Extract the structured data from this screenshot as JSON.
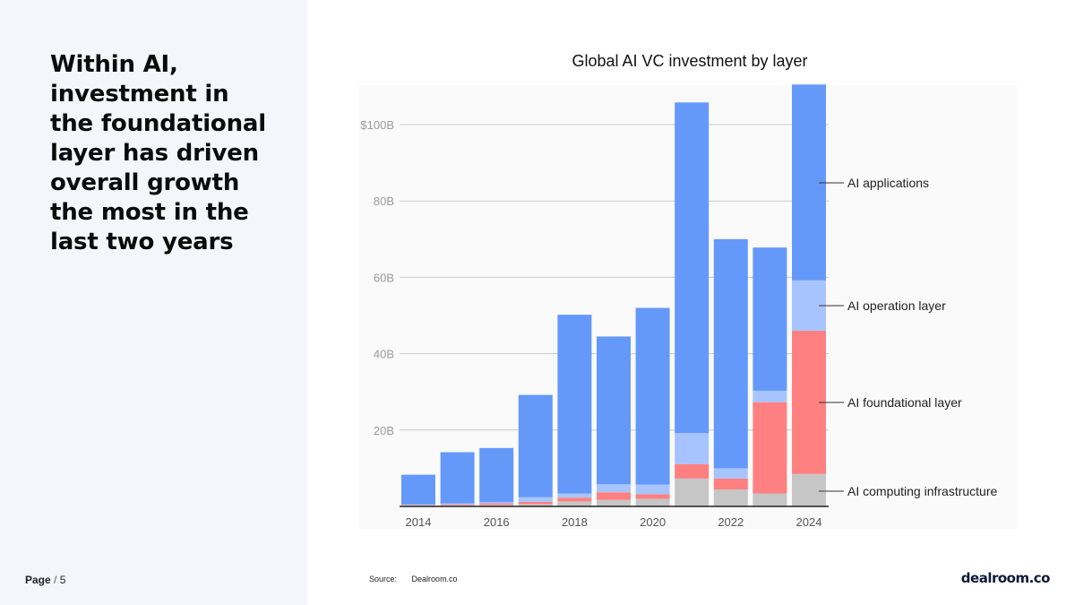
{
  "slide": {
    "headline": "Within AI,\ninvestment in\nthe foundational\nlayer has driven\noverall growth\nthe most in the\nlast two years",
    "page_number": "Page",
    "page_sep": "/",
    "page_total": "5",
    "source_label": "Source:",
    "source_value": "Dealroom.co",
    "logo_text": "dealroom.co"
  },
  "chart_data": {
    "type": "bar",
    "stacked": true,
    "title": "Global AI VC investment by layer",
    "xlabel": "",
    "ylabel": "",
    "ylim": [
      0,
      110
    ],
    "y_ticks": [
      {
        "value": 20,
        "label": "20B"
      },
      {
        "value": 40,
        "label": "40B"
      },
      {
        "value": 60,
        "label": "60B"
      },
      {
        "value": 80,
        "label": "80B"
      },
      {
        "value": 100,
        "label": "$100B"
      }
    ],
    "categories": [
      "2014",
      "2015",
      "2016",
      "2017",
      "2018",
      "2019",
      "2020",
      "2021",
      "2022",
      "2023",
      "2024"
    ],
    "x_tick_labels": [
      "2014",
      "",
      "2016",
      "",
      "2018",
      "",
      "2020",
      "",
      "2022",
      "",
      "2024"
    ],
    "grid": true,
    "legend_placement": "right, aligned to top segment of last bar",
    "series": [
      {
        "name": "AI computing infrastructure",
        "color": "#c6c6c6",
        "values": [
          0.3,
          0.4,
          0.4,
          0.6,
          1.3,
          1.7,
          2.0,
          7.3,
          4.4,
          3.4,
          8.5
        ]
      },
      {
        "name": "AI foundational layer",
        "color": "#ff8080",
        "values": [
          0.1,
          0.2,
          0.4,
          0.6,
          1.0,
          2.0,
          1.2,
          3.8,
          2.9,
          23.9,
          37.5
        ]
      },
      {
        "name": "AI operation layer",
        "color": "#a8c4ff",
        "values": [
          0.1,
          0.2,
          0.3,
          1.2,
          1.1,
          2.1,
          2.5,
          8.1,
          2.7,
          3.0,
          13.2
        ]
      },
      {
        "name": "AI applications",
        "color": "#6499fa",
        "values": [
          7.8,
          13.4,
          14.2,
          26.8,
          46.8,
          38.7,
          46.3,
          86.6,
          60.0,
          37.5,
          51.3
        ]
      }
    ]
  }
}
